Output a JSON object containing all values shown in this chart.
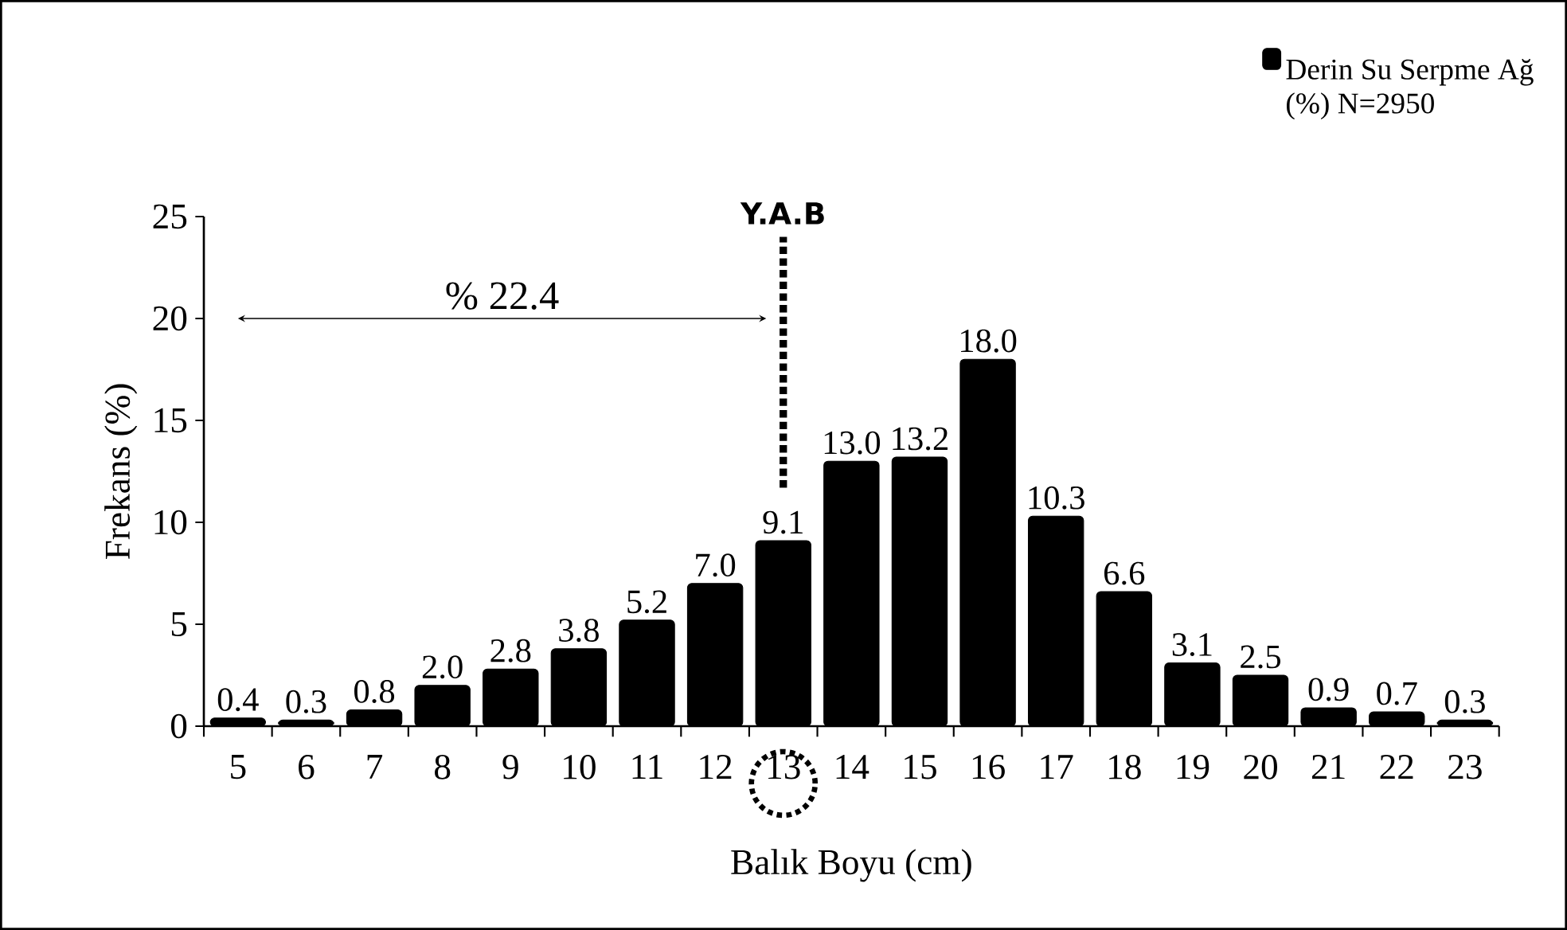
{
  "chart_data": {
    "type": "bar",
    "xlabel": "Balık Boyu (cm)",
    "ylabel": "Frekans (%)",
    "categories": [
      "5",
      "6",
      "7",
      "8",
      "9",
      "10",
      "11",
      "12",
      "13",
      "14",
      "15",
      "16",
      "17",
      "18",
      "19",
      "20",
      "21",
      "22",
      "23"
    ],
    "series": [
      {
        "name": "Derin Su Serpme Ağ (%) N=2950",
        "color": "#000000",
        "values": [
          0.4,
          0.3,
          0.8,
          2.0,
          2.8,
          3.8,
          5.2,
          7.0,
          9.1,
          13.0,
          13.2,
          18.0,
          10.3,
          6.6,
          3.1,
          2.5,
          0.9,
          0.7,
          0.3
        ]
      }
    ],
    "ylim": [
      0,
      25
    ],
    "yticks": [
      0,
      5,
      10,
      15,
      20,
      25
    ],
    "value_labels": [
      "0.4",
      "0.3",
      "0.8",
      "2.0",
      "2.8",
      "3.8",
      "5.2",
      "7.0",
      "9.1",
      "13.0",
      "13.2",
      "18.0",
      "10.3",
      "6.6",
      "3.1",
      "2.5",
      "0.9",
      "0.7",
      "0.3"
    ],
    "grid": false,
    "legend": "top right",
    "ref_lines": [
      {
        "axis": "x",
        "value": "13",
        "label": "Y.A.B",
        "line_style": "dotted"
      }
    ],
    "annotations": [
      "% 22.4"
    ]
  }
}
